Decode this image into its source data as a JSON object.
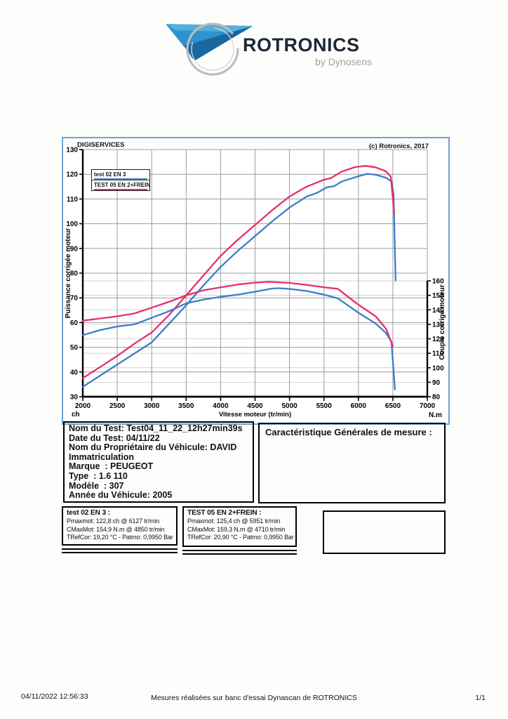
{
  "logo": {
    "brand": "ROTRONICS",
    "sub": "by Dynosens",
    "triangle_color": "#2e93cc",
    "ring_color": "#bcbcbc"
  },
  "chart": {
    "header_left": "DIGISERVICES",
    "header_right": "(c) Rotronics, 2017",
    "legend": [
      {
        "label": "test 02 EN 3",
        "color": "#3b7dc8"
      },
      {
        "label": "TEST 05 EN 2+FREIN",
        "color": "#e4306e"
      }
    ]
  },
  "chart_data": {
    "type": "line",
    "title": "",
    "xlabel": "Vitesse moteur (tr/min)",
    "ylabel_left": "Puissance corrigée moteur",
    "ylabel_right": "Couple corrigé moteur",
    "y_left_unit": "ch",
    "y_right_unit": "N.m",
    "xlim": [
      2000,
      7000
    ],
    "x_tick_step": 500,
    "ylim_left": [
      30,
      130
    ],
    "y_left_tick_step": 10,
    "ylim_right": [
      80,
      160
    ],
    "y_right_tick_step": 10,
    "grid": true,
    "legend_position": "top-left",
    "series": [
      {
        "name": "test 02 EN 3 - Puissance (ch)",
        "axis": "left",
        "color": "#3b7dc8",
        "points": [
          [
            2000,
            34
          ],
          [
            2250,
            38.5
          ],
          [
            2500,
            43
          ],
          [
            2750,
            47.5
          ],
          [
            3000,
            52
          ],
          [
            3250,
            59.5
          ],
          [
            3500,
            67
          ],
          [
            3750,
            75
          ],
          [
            4000,
            82.5
          ],
          [
            4250,
            89
          ],
          [
            4500,
            95
          ],
          [
            4750,
            101
          ],
          [
            5000,
            106.5
          ],
          [
            5250,
            111
          ],
          [
            5400,
            112.5
          ],
          [
            5550,
            114.8
          ],
          [
            5650,
            115.2
          ],
          [
            5750,
            117
          ],
          [
            6000,
            119.2
          ],
          [
            6130,
            120.2
          ],
          [
            6250,
            119.8
          ],
          [
            6400,
            118.6
          ],
          [
            6480,
            117.2
          ],
          [
            6510,
            112
          ],
          [
            6540,
            77
          ]
        ]
      },
      {
        "name": "TEST 05 EN 2+FREIN - Puissance (ch)",
        "axis": "left",
        "color": "#e4306e",
        "points": [
          [
            2000,
            37.5
          ],
          [
            2250,
            42
          ],
          [
            2500,
            46.5
          ],
          [
            2750,
            51.5
          ],
          [
            3000,
            56
          ],
          [
            3250,
            63
          ],
          [
            3500,
            71
          ],
          [
            3750,
            79
          ],
          [
            4000,
            87
          ],
          [
            4250,
            93.5
          ],
          [
            4500,
            99.5
          ],
          [
            4750,
            105.5
          ],
          [
            5000,
            111
          ],
          [
            5250,
            115
          ],
          [
            5500,
            117.8
          ],
          [
            5600,
            118.4
          ],
          [
            5750,
            121
          ],
          [
            5950,
            122.9
          ],
          [
            6100,
            123.4
          ],
          [
            6250,
            122.8
          ],
          [
            6400,
            121.2
          ],
          [
            6470,
            119
          ],
          [
            6520,
            104
          ]
        ]
      },
      {
        "name": "test 02 EN 3 - Couple (N.m)",
        "axis": "right",
        "color": "#3b7dc8",
        "points": [
          [
            2000,
            122.5
          ],
          [
            2250,
            126
          ],
          [
            2500,
            128.5
          ],
          [
            2750,
            130
          ],
          [
            3000,
            134.5
          ],
          [
            3250,
            139
          ],
          [
            3500,
            144.5
          ],
          [
            3750,
            147
          ],
          [
            4000,
            149
          ],
          [
            4250,
            150.5
          ],
          [
            4500,
            152.5
          ],
          [
            4750,
            154.7
          ],
          [
            4850,
            154.9
          ],
          [
            5000,
            154.4
          ],
          [
            5250,
            153
          ],
          [
            5500,
            150.5
          ],
          [
            5700,
            148
          ],
          [
            6000,
            138
          ],
          [
            6250,
            130.5
          ],
          [
            6400,
            124
          ],
          [
            6480,
            118
          ],
          [
            6530,
            85
          ]
        ]
      },
      {
        "name": "TEST 05 EN 2+FREIN - Couple (N.m)",
        "axis": "right",
        "color": "#e4306e",
        "points": [
          [
            2000,
            132.5
          ],
          [
            2250,
            134
          ],
          [
            2500,
            135.5
          ],
          [
            2750,
            137.5
          ],
          [
            3000,
            141.5
          ],
          [
            3250,
            145.5
          ],
          [
            3500,
            150
          ],
          [
            3750,
            153.5
          ],
          [
            4000,
            155.5
          ],
          [
            4250,
            157.5
          ],
          [
            4500,
            158.8
          ],
          [
            4710,
            159.3
          ],
          [
            5000,
            158.6
          ],
          [
            5250,
            157.2
          ],
          [
            5500,
            155.6
          ],
          [
            5700,
            154.5
          ],
          [
            6000,
            143.5
          ],
          [
            6250,
            135.5
          ],
          [
            6400,
            127
          ],
          [
            6500,
            115
          ]
        ]
      }
    ]
  },
  "vehicle": {
    "lines": [
      "Nom du Test: Test04_11_22_12h27min39s",
      "Date du Test: 04/11/22",
      "Nom du Propriétaire du Véhicule: DAVID",
      "Immatriculation",
      "Marque  : PEUGEOT",
      "Type  : 1.6 110",
      "Modèle  : 307",
      "Année du Véhicule: 2005"
    ]
  },
  "caracteristique_title": "Caractéristique Générales de mesure :",
  "results": [
    {
      "title": "test 02 EN 3 :",
      "lines": [
        "Pmaxmot: 122,8 ch @ 6127 tr/min",
        "CMaxMot: 154,9 N.m @ 4850 tr/min",
        "TRefCor: 19,20 °C - Patmo: 0,9950 Bar"
      ]
    },
    {
      "title": "TEST 05 EN 2+FREIN :",
      "lines": [
        "Pmaxmot: 125,4 ch @ 5951 tr/min",
        "CMaxMot: 159,3 N.m @ 4710 tr/min",
        "TRefCor: 20,90 °C - Patmo: 0,9950 Bar"
      ]
    }
  ],
  "footer": {
    "datetime": "04/11/2022 12:56:33",
    "center": "Mesures réalisées sur banc d'essai Dynascan de ROTRONICS",
    "page": "1/1"
  }
}
